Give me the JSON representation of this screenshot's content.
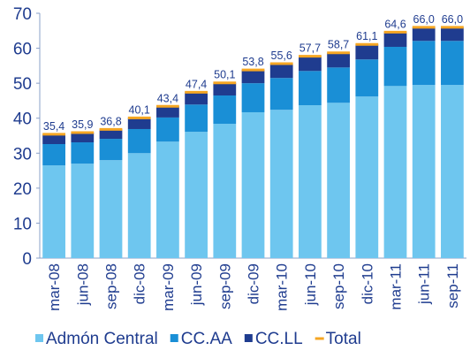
{
  "chart_data": {
    "type": "bar",
    "stacked": true,
    "categories": [
      "mar-08",
      "jun-08",
      "sep-08",
      "dic-08",
      "mar-09",
      "jun-09",
      "sep-09",
      "dic-09",
      "mar-10",
      "jun-10",
      "sep-10",
      "dic-10",
      "mar-11",
      "jun-11",
      "sep-11"
    ],
    "series": [
      {
        "name": "Admón Central",
        "color": "#6ec6ef",
        "values": [
          26.5,
          27.0,
          28.0,
          30.0,
          33.3,
          36.1,
          38.4,
          41.7,
          42.4,
          43.7,
          44.4,
          46.2,
          49.2,
          49.5,
          49.5
        ]
      },
      {
        "name": "CC.AA",
        "color": "#1a8fd6",
        "values": [
          6.1,
          6.1,
          6.1,
          6.9,
          6.9,
          7.8,
          8.1,
          8.3,
          9.1,
          9.8,
          10.1,
          10.6,
          11.2,
          12.6,
          12.6
        ]
      },
      {
        "name": "CC.LL",
        "color": "#1f3c8f",
        "values": [
          2.8,
          2.8,
          2.7,
          3.2,
          3.2,
          3.5,
          3.6,
          3.8,
          4.1,
          4.2,
          4.2,
          4.3,
          4.2,
          3.9,
          3.9
        ]
      },
      {
        "name": "Total",
        "color": "#f5a623",
        "marker": "dash",
        "values": [
          35.4,
          35.9,
          36.8,
          40.1,
          43.4,
          47.4,
          50.1,
          53.8,
          55.6,
          57.7,
          58.7,
          61.1,
          64.6,
          66.0,
          66.0
        ],
        "value_labels": [
          "35,4",
          "35,9",
          "36,8",
          "40,1",
          "43,4",
          "47,4",
          "50,1",
          "53,8",
          "55,6",
          "57,7",
          "58,7",
          "61,1",
          "64,6",
          "66,0",
          "66,0"
        ]
      }
    ],
    "ylim": [
      0,
      70
    ],
    "yticks": [
      0,
      10,
      20,
      30,
      40,
      50,
      60,
      70
    ]
  }
}
